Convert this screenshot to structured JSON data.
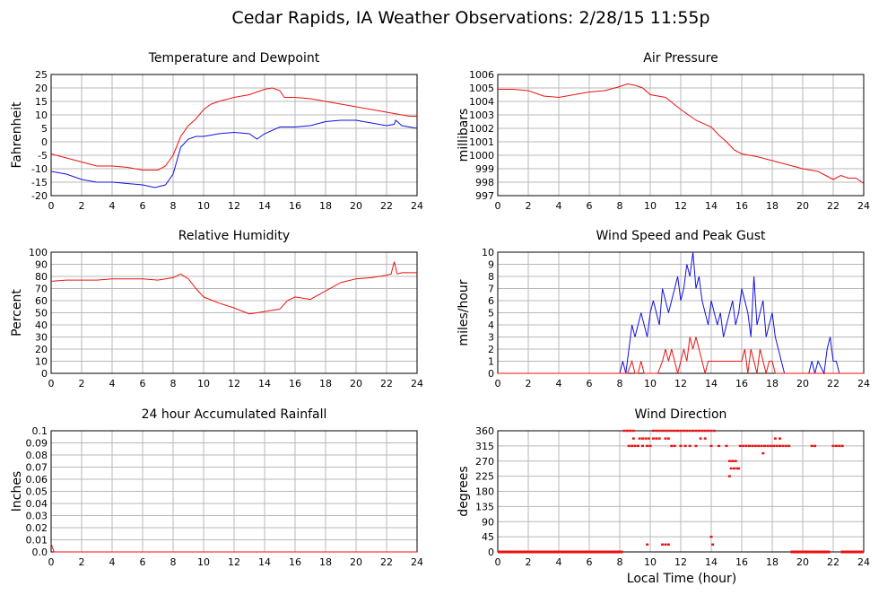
{
  "page": {
    "title": "Cedar Rapids, IA Weather Observations: 2/28/15 11:55p",
    "x_axis_label": "Local Time (hour)"
  },
  "colors": {
    "red": "#ee1111",
    "blue": "#1111dd",
    "grid": "#b8b8b8"
  },
  "x_ticks": [
    "0",
    "2",
    "4",
    "6",
    "8",
    "10",
    "12",
    "14",
    "16",
    "18",
    "20",
    "22",
    "24"
  ],
  "chart_data": [
    {
      "id": "temp",
      "type": "line",
      "title": "Temperature and Dewpoint",
      "ylabel": "Fahrenheit",
      "xlim": [
        0,
        24
      ],
      "ylim": [
        -20,
        25
      ],
      "yticks": [
        "25",
        "20",
        "15",
        "10",
        "5",
        "0",
        "-5",
        "-10",
        "-15",
        "-20"
      ],
      "grid": true,
      "series": [
        {
          "color": "#ee1111",
          "x": [
            0,
            1,
            2,
            3,
            4,
            5,
            6,
            7,
            7.5,
            8,
            8.5,
            9,
            9.5,
            10,
            10.5,
            11,
            12,
            13,
            14,
            14.5,
            15,
            15.3,
            16,
            17,
            18,
            19,
            20,
            21,
            22,
            23,
            23.5,
            24
          ],
          "values": [
            -4.5,
            -6,
            -7.5,
            -9,
            -9,
            -9.5,
            -10.5,
            -10.5,
            -9,
            -5,
            2,
            6,
            8.5,
            12,
            14,
            15,
            16.5,
            17.5,
            19.5,
            20,
            19,
            16.5,
            16.5,
            16,
            15,
            14,
            13,
            12,
            11,
            10,
            9.5,
            9.5
          ]
        },
        {
          "color": "#1111dd",
          "x": [
            0,
            1,
            2,
            3,
            4,
            5,
            6,
            6.8,
            7.5,
            8,
            8.5,
            9,
            9.5,
            10,
            11,
            12,
            13,
            13.5,
            14,
            15,
            16,
            17,
            18,
            19,
            20,
            21,
            22,
            22.5,
            22.6,
            23,
            24
          ],
          "values": [
            -11,
            -12,
            -14,
            -15,
            -15,
            -15.5,
            -16,
            -17,
            -16,
            -12,
            -2,
            1,
            2,
            2,
            3,
            3.5,
            3,
            1,
            3,
            5.5,
            5.5,
            6,
            7.5,
            8,
            8,
            7,
            6,
            6.5,
            8,
            6,
            5
          ]
        }
      ]
    },
    {
      "id": "pressure",
      "type": "line",
      "title": "Air Pressure",
      "ylabel": "millibars",
      "xlim": [
        0,
        24
      ],
      "ylim": [
        997,
        1006
      ],
      "yticks": [
        "1006",
        "1005",
        "1004",
        "1003",
        "1002",
        "1001",
        "1000",
        "999",
        "998",
        "997"
      ],
      "grid": true,
      "series": [
        {
          "color": "#ee1111",
          "x": [
            0,
            1,
            2,
            3,
            4,
            5,
            6,
            7,
            8,
            8.5,
            9,
            9.5,
            10,
            11,
            12,
            12.5,
            13,
            14,
            14.5,
            15,
            15.5,
            16,
            17,
            18,
            19,
            20,
            21,
            21.5,
            22,
            22.5,
            23,
            23.5,
            24
          ],
          "values": [
            1004.9,
            1004.9,
            1004.8,
            1004.4,
            1004.3,
            1004.5,
            1004.7,
            1004.8,
            1005.1,
            1005.3,
            1005.2,
            1005,
            1004.5,
            1004.3,
            1003.4,
            1003,
            1002.6,
            1002.1,
            1001.5,
            1001,
            1000.4,
            1000.1,
            999.9,
            999.6,
            999.3,
            999,
            998.8,
            998.5,
            998.2,
            998.5,
            998.3,
            998.3,
            997.9
          ]
        }
      ]
    },
    {
      "id": "humidity",
      "type": "line",
      "title": "Relative Humidity",
      "ylabel": "Percent",
      "xlim": [
        0,
        24
      ],
      "ylim": [
        0,
        100
      ],
      "yticks": [
        "100",
        "90",
        "80",
        "70",
        "60",
        "50",
        "40",
        "30",
        "20",
        "10",
        "0"
      ],
      "grid": true,
      "series": [
        {
          "color": "#ee1111",
          "x": [
            0,
            1,
            2,
            3,
            4,
            5,
            6,
            7,
            8,
            8.5,
            9,
            9.5,
            10,
            11,
            12,
            13,
            14,
            15,
            15.5,
            16,
            17,
            18,
            19,
            20,
            21,
            22,
            22.3,
            22.5,
            22.7,
            23,
            24
          ],
          "values": [
            76,
            77,
            77,
            77,
            78,
            78,
            78,
            77,
            79,
            82,
            78,
            70,
            63,
            58,
            54,
            49,
            51,
            53,
            60,
            63,
            61,
            68,
            75,
            78,
            79,
            81,
            82,
            92,
            82,
            83,
            83
          ]
        }
      ]
    },
    {
      "id": "wind",
      "type": "line",
      "title": "Wind Speed and Peak Gust",
      "ylabel": "miles/hour",
      "xlim": [
        0,
        24
      ],
      "ylim": [
        0,
        10
      ],
      "yticks": [
        "10",
        "9",
        "8",
        "7",
        "6",
        "5",
        "4",
        "3",
        "2",
        "1",
        "0"
      ],
      "grid": true,
      "series": [
        {
          "color": "#1111dd",
          "x": [
            0,
            8,
            8.2,
            8.4,
            8.6,
            8.8,
            9,
            9.2,
            9.4,
            9.6,
            9.8,
            10,
            10.2,
            10.4,
            10.6,
            10.8,
            11,
            11.2,
            11.4,
            11.6,
            11.8,
            12,
            12.2,
            12.4,
            12.6,
            12.8,
            13,
            13.2,
            13.4,
            13.6,
            13.8,
            14,
            14.2,
            14.4,
            14.6,
            14.8,
            15,
            15.2,
            15.4,
            15.6,
            15.8,
            16,
            16.2,
            16.4,
            16.6,
            16.8,
            17,
            17.2,
            17.4,
            17.6,
            17.8,
            18,
            18.2,
            18.4,
            18.6,
            18.8,
            19,
            20.4,
            20.6,
            20.8,
            21,
            21.4,
            21.6,
            21.8,
            22,
            22.2,
            22.4,
            22.6,
            24
          ],
          "values": [
            0,
            0,
            1,
            0,
            2,
            4,
            3,
            4,
            5,
            4,
            3,
            5,
            6,
            5,
            4,
            7,
            6,
            5,
            6,
            7,
            8,
            6,
            7,
            9,
            8,
            10,
            7,
            8,
            6,
            5,
            4,
            6,
            5,
            4,
            5,
            3,
            4,
            5,
            6,
            4,
            5,
            7,
            6,
            5,
            3,
            8,
            4,
            5,
            6,
            3,
            4,
            5,
            3,
            2,
            1,
            0,
            0,
            0,
            1,
            0,
            1,
            0,
            2,
            3,
            1,
            1,
            0,
            0,
            0
          ]
        },
        {
          "color": "#ee1111",
          "x": [
            0,
            8.5,
            8.8,
            9,
            9.2,
            9.4,
            9.6,
            9.8,
            10,
            10.5,
            10.8,
            11,
            11.2,
            11.4,
            11.6,
            11.8,
            12,
            12.2,
            12.4,
            12.6,
            12.8,
            13,
            13.2,
            13.4,
            13.6,
            13.8,
            14,
            14.5,
            15,
            15.5,
            16,
            16.2,
            16.4,
            16.6,
            16.8,
            17,
            17.2,
            17.4,
            17.6,
            17.8,
            18,
            18.2,
            18.4,
            24
          ],
          "values": [
            0,
            0,
            1,
            0,
            0,
            1,
            0,
            0,
            0,
            0,
            1,
            2,
            1,
            2,
            1,
            0,
            1,
            2,
            1,
            3,
            2,
            3,
            2,
            1,
            0,
            1,
            1,
            1,
            1,
            1,
            1,
            2,
            0,
            2,
            1,
            0,
            2,
            1,
            0,
            1,
            1,
            0,
            0,
            0
          ]
        }
      ]
    },
    {
      "id": "rain",
      "type": "line",
      "title": "24 hour Accumulated Rainfall",
      "ylabel": "Inches",
      "xlim": [
        0,
        24
      ],
      "ylim": [
        0,
        0.1
      ],
      "yticks": [
        "0.1",
        "0.09",
        "0.08",
        "0.07",
        "0.06",
        "0.05",
        "0.04",
        "0.03",
        "0.02",
        "0.01",
        "0.0"
      ],
      "grid": true,
      "series": [
        {
          "color": "#ee1111",
          "x": [
            0,
            0.1,
            0.2,
            24
          ],
          "values": [
            0.007,
            0.003,
            0,
            0
          ]
        }
      ]
    },
    {
      "id": "direction",
      "type": "scatter",
      "title": "Wind Direction",
      "ylabel": "degrees",
      "xlim": [
        0,
        24
      ],
      "ylim": [
        0,
        360
      ],
      "yticks": [
        "360",
        "315",
        "270",
        "225",
        "180",
        "135",
        "90",
        "45",
        "0"
      ],
      "grid": true,
      "series": [
        {
          "color": "#ee1111",
          "x": [
            8.3,
            8.5,
            8.7,
            8.9,
            8.6,
            8.8,
            9.0,
            9.2,
            8.9,
            9.3,
            9.5,
            9.7,
            9.9,
            9.5,
            9.8,
            10.0,
            10.2,
            10.4,
            10.6,
            10.8,
            11.0,
            11.2,
            11.4,
            11.6,
            11.8,
            12.0,
            12.2,
            12.4,
            12.6,
            12.8,
            13.0,
            13.2,
            13.4,
            13.6,
            13.8,
            14.0,
            14.2,
            10.2,
            10.4,
            10.6,
            11.0,
            11.2,
            11.4,
            11.6,
            12.0,
            12.3,
            12.6,
            13.0,
            13.3,
            13.6,
            14.0,
            14.5,
            15.0,
            15.2,
            15.4,
            15.6,
            15.8,
            15.3,
            15.5,
            15.7,
            15.9,
            16.1,
            16.3,
            16.5,
            16.7,
            16.9,
            17.1,
            17.3,
            17.5,
            17.7,
            17.9,
            18.1,
            18.3,
            18.5,
            18.7,
            18.9,
            19.1,
            17.4,
            18.2,
            18.5,
            20.6,
            20.8,
            22.0,
            22.2,
            22.4,
            22.6,
            9.8,
            10.8,
            11.0,
            11.2,
            14.0,
            14.1,
            15.2,
            15.4
          ],
          "values": [
            360,
            360,
            360,
            360,
            315,
            315,
            315,
            315,
            337,
            337,
            337,
            337,
            337,
            315,
            315,
            315,
            360,
            360,
            360,
            360,
            360,
            360,
            360,
            360,
            360,
            360,
            360,
            360,
            360,
            360,
            360,
            360,
            360,
            360,
            360,
            360,
            360,
            337,
            337,
            337,
            337,
            337,
            315,
            315,
            315,
            315,
            315,
            315,
            337,
            337,
            315,
            315,
            315,
            270,
            270,
            270,
            248,
            248,
            248,
            248,
            315,
            315,
            315,
            315,
            315,
            315,
            315,
            315,
            315,
            315,
            315,
            315,
            315,
            315,
            315,
            315,
            315,
            293,
            337,
            337,
            315,
            315,
            315,
            315,
            315,
            315,
            22,
            22,
            22,
            22,
            45,
            22,
            225,
            270
          ]
        },
        {
          "color": "#ee1111",
          "x": [
            0,
            24
          ],
          "values": [
            0,
            0
          ],
          "band": [
            [
              0,
              8.2
            ],
            [
              19.2,
              21.8
            ],
            [
              22.5,
              24
            ]
          ]
        }
      ]
    }
  ]
}
